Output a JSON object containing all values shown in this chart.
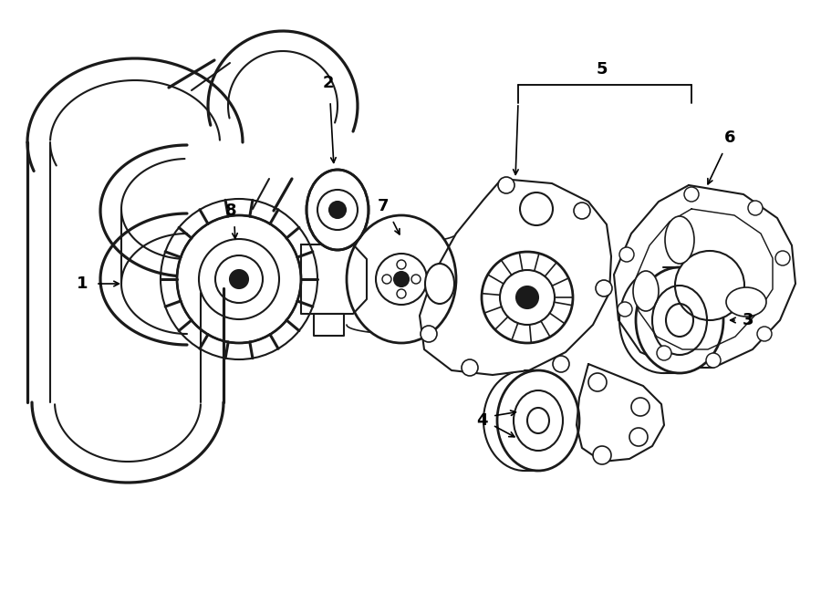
{
  "bg_color": "#ffffff",
  "line_color": "#1a1a1a",
  "line_width": 1.5,
  "label_fontsize": 13,
  "label_color": "#000000"
}
